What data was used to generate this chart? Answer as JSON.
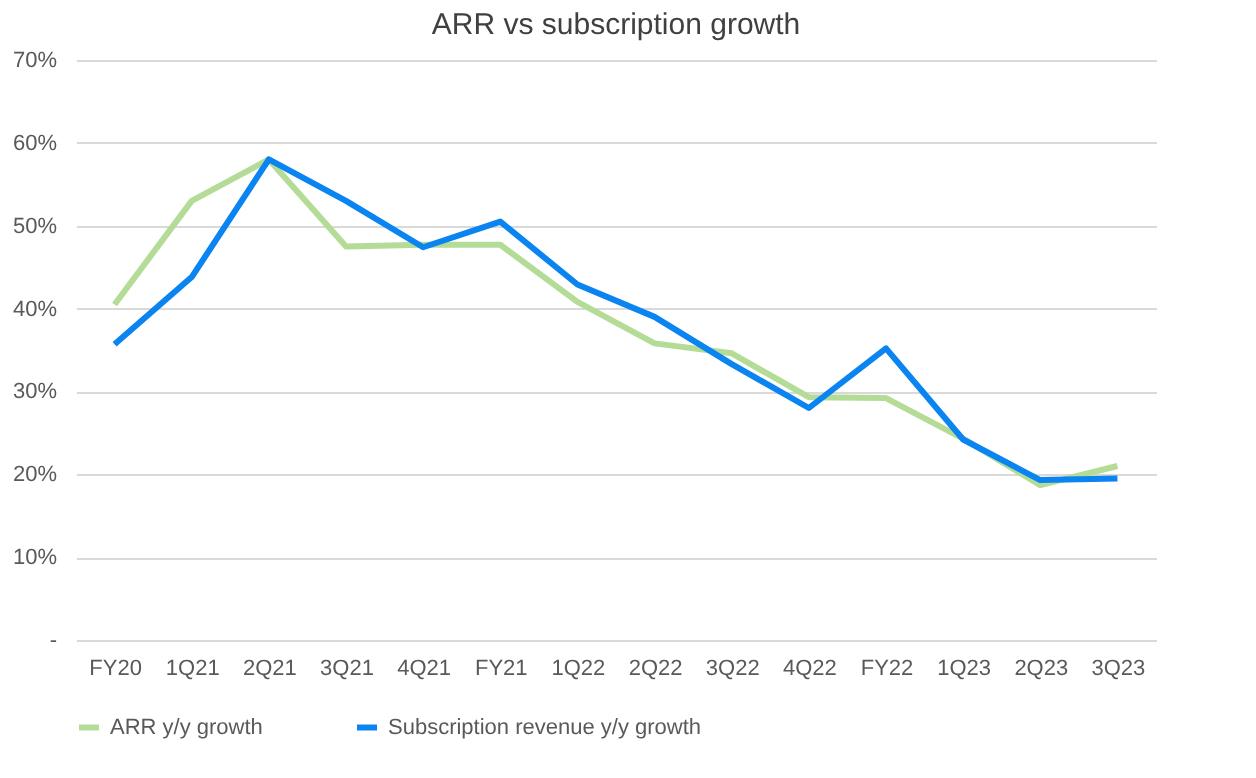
{
  "chart_data": {
    "type": "line",
    "title": "ARR vs subscription growth",
    "categories": [
      "FY20",
      "1Q21",
      "2Q21",
      "3Q21",
      "4Q21",
      "FY21",
      "1Q22",
      "2Q22",
      "3Q22",
      "4Q22",
      "FY22",
      "1Q23",
      "2Q23",
      "3Q23"
    ],
    "series": [
      {
        "name": "ARR y/y growth",
        "color": "#b4dc96",
        "values": [
          40.5,
          53,
          58,
          47.5,
          47.7,
          47.7,
          40.8,
          35.8,
          34.6,
          29.3,
          29.2,
          24.3,
          18.7,
          21
        ]
      },
      {
        "name": "Subscription revenue y/y growth",
        "color": "#0a84f0",
        "values": [
          35.7,
          43.8,
          58,
          53,
          47.4,
          50.5,
          42.9,
          39,
          33.3,
          28,
          35.2,
          24.2,
          19.3,
          19.5
        ]
      }
    ],
    "ylim": [
      0,
      70
    ],
    "yticks": [
      {
        "value": 0,
        "label": "-"
      },
      {
        "value": 10,
        "label": "10%"
      },
      {
        "value": 20,
        "label": "20%"
      },
      {
        "value": 30,
        "label": "30%"
      },
      {
        "value": 40,
        "label": "40%"
      },
      {
        "value": 50,
        "label": "50%"
      },
      {
        "value": 60,
        "label": "60%"
      },
      {
        "value": 70,
        "label": "70%"
      }
    ],
    "grid": "y",
    "legend": "bottom",
    "marker": "none",
    "line_style": "solid"
  }
}
